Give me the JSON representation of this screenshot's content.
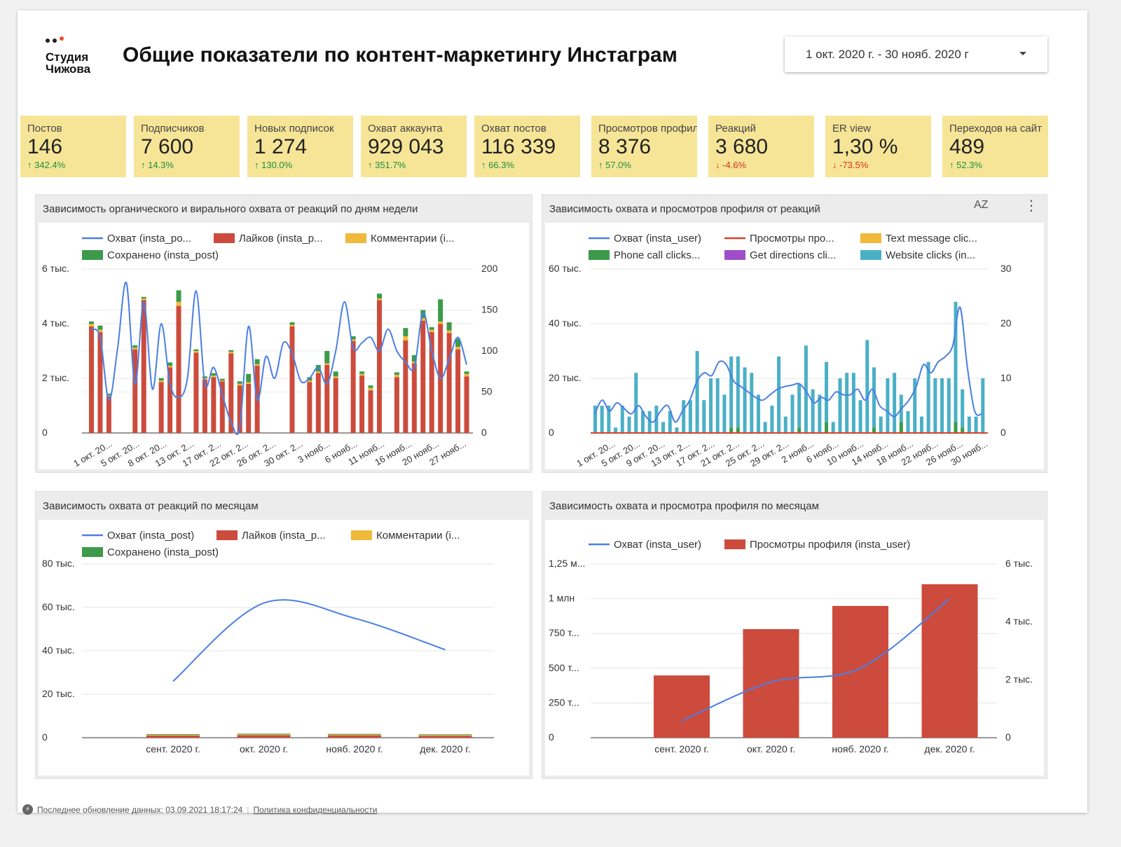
{
  "logo": {
    "name_line1": "Студия",
    "name_line2": "Чижова"
  },
  "header": {
    "title": "Общие показатели по контент-маркетингу Инстаграм"
  },
  "date_range": {
    "value": "1 окт. 2020 г. - 30 нояб. 2020 г"
  },
  "colors": {
    "kpi_bg": "#f6e597",
    "up": "#1e8e3e",
    "down": "#d93025",
    "line": "#4a7fe5",
    "likes": "#cc4b3c",
    "comments": "#f0b93a",
    "saved": "#3c9a4a",
    "teal": "#4ab0c6",
    "purple": "#a04ec8"
  },
  "kpis": [
    {
      "label": "Постов",
      "value": "146",
      "change": "342.4%",
      "dir": "up"
    },
    {
      "label": "Подписчиков",
      "value": "7 600",
      "change": "14.3%",
      "dir": "up"
    },
    {
      "label": "Новых подписок",
      "value": "1 274",
      "change": "130.0%",
      "dir": "up"
    },
    {
      "label": "Охват аккаунта",
      "value": "929 043",
      "change": "351.7%",
      "dir": "up"
    },
    {
      "label": "Охват постов",
      "value": "116 339",
      "change": "66.3%",
      "dir": "up"
    },
    {
      "label": "Просмотров профиля",
      "value": "8 376",
      "change": "57.0%",
      "dir": "up"
    },
    {
      "label": "Реакций",
      "value": "3 680",
      "change": "-4.6%",
      "dir": "down"
    },
    {
      "label": "ER view",
      "value": "1,30 %",
      "change": "-73.5%",
      "dir": "down"
    },
    {
      "label": "Переходов на сайт",
      "value": "489",
      "change": "52.3%",
      "dir": "up"
    }
  ],
  "panels": {
    "p1": {
      "title": "Зависимость органического и вирального охвата от реакций по дням недели"
    },
    "p2": {
      "title": "Зависимость охвата и просмотров профиля от реакций",
      "sort_icon": "AZ",
      "more_icon": "⋮"
    },
    "p3": {
      "title": "Зависимость охвата от реакций по месяцам"
    },
    "p4": {
      "title": "Зависимость охвата и просмотра профиля по месяцам"
    }
  },
  "chart_data": [
    {
      "type": "bar",
      "title": "Зависимость органического и вирального охвата от реакций по дням недели",
      "legend": [
        "Охват (insta_po...",
        "Лайков (insta_p...",
        "Комментарии (i...",
        "Сохранено (insta_post)"
      ],
      "y_left_ticks": [
        "6 тыс.",
        "4 тыс.",
        "2 тыс.",
        "0"
      ],
      "y_right_ticks": [
        "200",
        "150",
        "100",
        "50",
        "0"
      ],
      "ylim_left": [
        0,
        6000
      ],
      "ylim_right": [
        0,
        200
      ],
      "x_tick_labels": [
        "1 окт. 20...",
        "5 окт. 20...",
        "8 окт. 20...",
        "13 окт. 2...",
        "17 окт. 2...",
        "22 окт. 2...",
        "26 окт. 2...",
        "30 окт. 2...",
        "3 нояб...",
        "6 нояб...",
        "11 нояб...",
        "16 нояб...",
        "20 нояб...",
        "27 нояб..."
      ],
      "series": [
        {
          "name": "Лайков",
          "axis": "right",
          "values": [
            130,
            123,
            45,
            0,
            0,
            102,
            162,
            0,
            62,
            80,
            155,
            0,
            98,
            65,
            68,
            63,
            97,
            58,
            60,
            82,
            0,
            0,
            0,
            130,
            0,
            62,
            73,
            83,
            67,
            0,
            112,
            70,
            52,
            162,
            0,
            68,
            113,
            85,
            137,
            123,
            133,
            122,
            102,
            69
          ]
        },
        {
          "name": "Комментарии",
          "axis": "right",
          "values": [
            3,
            3,
            1,
            0,
            0,
            2,
            2,
            0,
            2,
            2,
            5,
            0,
            2,
            2,
            2,
            1,
            2,
            2,
            2,
            2,
            0,
            0,
            0,
            2,
            0,
            2,
            2,
            2,
            2,
            0,
            2,
            2,
            3,
            2,
            0,
            3,
            5,
            2,
            3,
            3,
            3,
            3,
            3,
            3
          ]
        },
        {
          "name": "Сохранено",
          "axis": "right",
          "values": [
            3,
            5,
            2,
            0,
            0,
            3,
            2,
            0,
            3,
            4,
            14,
            0,
            2,
            2,
            3,
            2,
            2,
            3,
            10,
            6,
            0,
            0,
            0,
            3,
            0,
            4,
            8,
            15,
            6,
            0,
            4,
            3,
            3,
            6,
            0,
            3,
            10,
            8,
            10,
            3,
            27,
            10,
            10,
            3
          ]
        },
        {
          "name": "Охват",
          "axis": "left",
          "values": [
            3800,
            3500,
            1200,
            3100,
            5500,
            1800,
            4800,
            1600,
            4000,
            1800,
            1300,
            2000,
            5200,
            1800,
            2400,
            1400,
            400,
            200,
            3900,
            1200,
            2800,
            2000,
            3300,
            2900,
            1900,
            2000,
            2400,
            1800,
            3000,
            4800,
            3100,
            3300,
            3500,
            3000,
            3800,
            3000,
            2600,
            2400,
            4400,
            3000,
            2000,
            2700,
            3500,
            2500
          ]
        }
      ]
    },
    {
      "type": "bar",
      "title": "Зависимость охвата и просмотров профиля от реакций",
      "legend": [
        "Охват (insta_user)",
        "Просмотры про...",
        "Text message clic...",
        "Phone call clicks...",
        "Get directions cli...",
        "Website clicks (in..."
      ],
      "y_left_ticks": [
        "60 тыс.",
        "40 тыс.",
        "20 тыс.",
        "0"
      ],
      "y_right_ticks": [
        "30",
        "20",
        "10",
        "0"
      ],
      "ylim_left": [
        0,
        60000
      ],
      "ylim_right": [
        0,
        30
      ],
      "x_tick_labels": [
        "1 окт. 20...",
        "5 окт. 20...",
        "9 окт. 20...",
        "13 окт. 2...",
        "17 окт. 2...",
        "21 окт. 2...",
        "25 окт. 2...",
        "29 окт. 2...",
        "2 нояб...",
        "6 нояб...",
        "10 нояб...",
        "14 нояб...",
        "18 нояб...",
        "22 нояб...",
        "26 нояб...",
        "30 нояб..."
      ],
      "series": [
        {
          "name": "Website clicks",
          "axis": "right",
          "values": [
            5,
            5,
            5,
            1,
            5,
            3,
            11,
            4,
            4,
            5,
            2,
            4,
            1,
            6,
            6,
            15,
            6,
            10,
            10,
            7,
            13,
            13,
            12,
            11,
            7,
            2,
            5,
            14,
            3,
            7,
            8,
            16,
            8,
            7,
            11,
            2,
            10,
            11,
            11,
            6,
            17,
            11,
            3,
            10,
            11,
            5,
            4,
            10,
            3,
            13,
            10,
            10,
            10,
            22,
            7,
            3,
            3,
            10
          ]
        },
        {
          "name": "Phone call clicks",
          "axis": "right",
          "values": [
            0,
            0,
            0,
            0,
            0,
            0,
            0,
            0,
            0,
            0,
            0,
            0,
            0,
            0,
            0,
            0,
            0,
            0,
            0,
            0,
            1,
            1,
            0,
            0,
            0,
            0,
            0,
            0,
            0,
            0,
            1,
            0,
            0,
            0,
            2,
            0,
            0,
            0,
            0,
            0,
            0,
            1,
            0,
            0,
            0,
            2,
            0,
            0,
            0,
            0,
            0,
            0,
            0,
            2,
            1,
            0,
            0,
            0
          ]
        },
        {
          "name": "Охват",
          "axis": "left",
          "values": [
            7000,
            12000,
            8000,
            11000,
            9000,
            7000,
            10000,
            6000,
            4000,
            8000,
            10000,
            4000,
            8000,
            12000,
            19000,
            22000,
            21000,
            26000,
            25000,
            19000,
            17000,
            15000,
            13000,
            12000,
            14000,
            16000,
            17000,
            17500,
            18000,
            15000,
            11000,
            13000,
            12000,
            15000,
            14000,
            14000,
            16000,
            12000,
            16000,
            10000,
            8000,
            6000,
            9000,
            12000,
            17000,
            25000,
            22000,
            26000,
            28000,
            32000,
            46000,
            24000,
            8000,
            7000
          ]
        },
        {
          "name": "Просмотры профиля",
          "axis": "left",
          "values": [
            0
          ]
        }
      ]
    },
    {
      "type": "bar",
      "title": "Зависимость охвата от реакций по месяцам",
      "legend": [
        "Охват (insta_post)",
        "Лайков (insta_p...",
        "Комментарии (i...",
        "Сохранено (insta_post)"
      ],
      "y_left_ticks": [
        "80 тыс.",
        "60 тыс.",
        "40 тыс.",
        "20 тыс.",
        "0"
      ],
      "ylim": [
        0,
        80000
      ],
      "categories": [
        "сент. 2020 г.",
        "окт. 2020 г.",
        "нояб. 2020 г.",
        "дек. 2020 г."
      ],
      "series": [
        {
          "name": "Охват",
          "values": [
            26000,
            62000,
            55000,
            40500
          ]
        },
        {
          "name": "Лайков",
          "values": [
            1000,
            1200,
            1100,
            900
          ]
        },
        {
          "name": "Комментарии",
          "values": [
            100,
            120,
            110,
            90
          ]
        },
        {
          "name": "Сохранено",
          "values": [
            150,
            180,
            160,
            140
          ]
        }
      ]
    },
    {
      "type": "bar",
      "title": "Зависимость охвата и просмотра профиля по месяцам",
      "legend": [
        "Охват (insta_user)",
        "Просмотры профиля (insta_user)"
      ],
      "y_left_ticks": [
        "1,25 м...",
        "1 млн",
        "750 т...",
        "500 т...",
        "250 т...",
        "0"
      ],
      "y_right_ticks": [
        "6 тыс.",
        "4 тыс.",
        "2 тыс.",
        "0"
      ],
      "ylim_left": [
        0,
        1250000
      ],
      "ylim_right": [
        0,
        6000
      ],
      "categories": [
        "сент. 2020 г.",
        "окт. 2020 г.",
        "нояб. 2020 г.",
        "дек. 2020 г."
      ],
      "series": [
        {
          "name": "Просмотры профиля",
          "axis": "right",
          "values": [
            2150,
            3750,
            4550,
            5300
          ]
        },
        {
          "name": "Охват",
          "axis": "left",
          "values": [
            120000,
            400000,
            500000,
            1000000
          ]
        }
      ]
    }
  ],
  "footer": {
    "updated": "Последнее обновление данных: 03.09.2021 18:17:24",
    "privacy": "Политика конфиденциальности"
  }
}
